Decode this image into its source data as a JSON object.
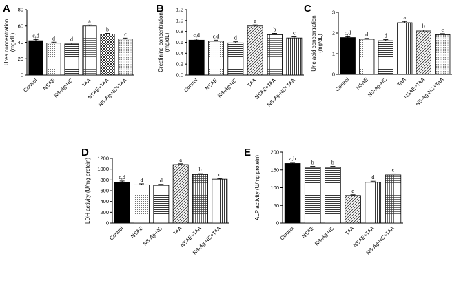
{
  "chart_data": [
    {
      "type": "bar",
      "panel": "A",
      "ylabel": "Urea concentration\n(mg/dL)",
      "categories": [
        "Control",
        "NSAE",
        "NS-Ag-NC",
        "TAA",
        "NSAE+TAA",
        "NS-Ag-NC+TAA"
      ],
      "values": [
        42,
        39,
        38,
        60,
        50,
        44
      ],
      "errors": [
        1.5,
        1.2,
        1.2,
        1.2,
        1.0,
        1.2
      ],
      "sig_labels": [
        "c,d",
        "d",
        "d",
        "a",
        "b",
        "c"
      ],
      "ylim": [
        0,
        80
      ],
      "yticks": [
        0,
        20,
        40,
        60,
        80
      ],
      "patterns": [
        "solid",
        "dots",
        "hlines",
        "grid",
        "checker",
        "dotgrid"
      ]
    },
    {
      "type": "bar",
      "panel": "B",
      "ylabel": "Creatinine concentration\n(mg/dL)",
      "categories": [
        "Control",
        "NSAE",
        "NS-Ag-NC",
        "TAA",
        "NSAE+TAA",
        "NS-Ag-NC+TAA"
      ],
      "values": [
        0.64,
        0.62,
        0.59,
        0.9,
        0.74,
        0.68
      ],
      "errors": [
        0.02,
        0.02,
        0.02,
        0.02,
        0.025,
        0.02
      ],
      "sig_labels": [
        "c,d",
        "c,d",
        "d",
        "a",
        "b",
        "c"
      ],
      "ylim": [
        0,
        1.2
      ],
      "yticks": [
        0.0,
        0.2,
        0.4,
        0.6,
        0.8,
        1.0,
        1.2
      ],
      "patterns": [
        "solid",
        "dots",
        "hlines",
        "dlines",
        "grid",
        "vlines"
      ]
    },
    {
      "type": "bar",
      "panel": "C",
      "ylabel": "Uric acid concentration\n(mg/dL)",
      "categories": [
        "Control",
        "NSAE",
        "NS-Ag-NC",
        "TAA",
        "NSAE+TAA",
        "NS-Ag-NC+TAA"
      ],
      "values": [
        1.78,
        1.7,
        1.63,
        2.5,
        2.1,
        1.92
      ],
      "errors": [
        0.04,
        0.04,
        0.05,
        0.06,
        0.05,
        0.05
      ],
      "sig_labels": [
        "c,d",
        "d",
        "d",
        "a",
        "b",
        "c"
      ],
      "ylim": [
        0,
        3
      ],
      "yticks": [
        0,
        1,
        2,
        3
      ],
      "patterns": [
        "solid",
        "dots",
        "hlines",
        "vlines",
        "dlines",
        "dotgrid"
      ]
    },
    {
      "type": "bar",
      "panel": "D",
      "ylabel": "LDH activity (U/mg protein)",
      "categories": [
        "Control",
        "NSAE",
        "NS-Ag-NC",
        "TAA",
        "NSAE+TAA",
        "NS-Ag-NC+TAA"
      ],
      "values": [
        760,
        710,
        700,
        1085,
        905,
        815
      ],
      "errors": [
        20,
        18,
        18,
        15,
        12,
        12
      ],
      "sig_labels": [
        "c,d",
        "d",
        "d",
        "a",
        "b",
        "c"
      ],
      "ylim": [
        0,
        1200
      ],
      "yticks": [
        0,
        200,
        400,
        600,
        800,
        1000,
        1200
      ],
      "patterns": [
        "solid",
        "dots",
        "hlines",
        "dlines",
        "grid",
        "vlines"
      ]
    },
    {
      "type": "bar",
      "panel": "E",
      "ylabel": "ALP activity (U/mg protein)",
      "categories": [
        "Control",
        "NSAE",
        "NS-Ag-NC",
        "TAA",
        "NSAE+TAA",
        "NS-Ag-NC+TAA"
      ],
      "values": [
        168,
        157,
        157,
        78,
        115,
        136
      ],
      "errors": [
        3,
        3,
        3,
        2,
        3,
        3
      ],
      "sig_labels": [
        "a,b",
        "b",
        "b",
        "e",
        "d",
        "c"
      ],
      "ylim": [
        0,
        200
      ],
      "yticks": [
        0,
        50,
        100,
        150,
        200
      ],
      "patterns": [
        "solid",
        "hlines",
        "hlines",
        "dlines",
        "vlines",
        "grid"
      ]
    }
  ]
}
